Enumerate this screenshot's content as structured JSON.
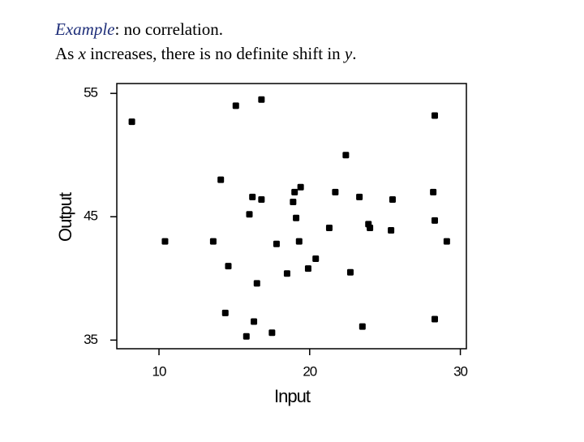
{
  "chart_data": {
    "type": "scatter",
    "title": {
      "emphasis": "Example",
      "text": ": no correlation."
    },
    "subtitle": [
      "As ",
      "x",
      " increases, there is no definite shift in ",
      "y",
      "."
    ],
    "x_label": "Input",
    "y_label": "Output",
    "color": "#000000",
    "xlim": [
      7.2,
      30.4
    ],
    "ylim": [
      34.3,
      55.8
    ],
    "xticks": [
      10,
      20,
      30
    ],
    "yticks": [
      35,
      45,
      55
    ],
    "x": [
      8.2,
      15.1,
      16.8,
      28.3,
      22.4,
      14.1,
      16.2,
      16.8,
      19.0,
      19.4,
      21.7,
      23.3,
      25.5,
      28.2,
      18.9,
      16.0,
      19.1,
      21.3,
      23.9,
      24.0,
      25.4,
      28.3,
      10.4,
      13.6,
      17.8,
      19.3,
      29.1,
      14.6,
      20.4,
      19.9,
      18.5,
      22.7,
      16.5,
      14.4,
      16.3,
      28.3,
      15.8,
      17.5,
      23.5
    ],
    "values": [
      52.7,
      54.0,
      54.5,
      53.2,
      50.0,
      48.0,
      46.6,
      46.4,
      47.0,
      47.4,
      47.0,
      46.6,
      46.4,
      47.0,
      46.2,
      45.2,
      44.9,
      44.1,
      44.4,
      44.1,
      43.9,
      44.7,
      43.0,
      43.0,
      42.8,
      43.0,
      43.0,
      41.0,
      41.6,
      40.8,
      40.4,
      40.5,
      39.6,
      37.2,
      36.5,
      36.7,
      35.3,
      35.6,
      36.1
    ]
  }
}
